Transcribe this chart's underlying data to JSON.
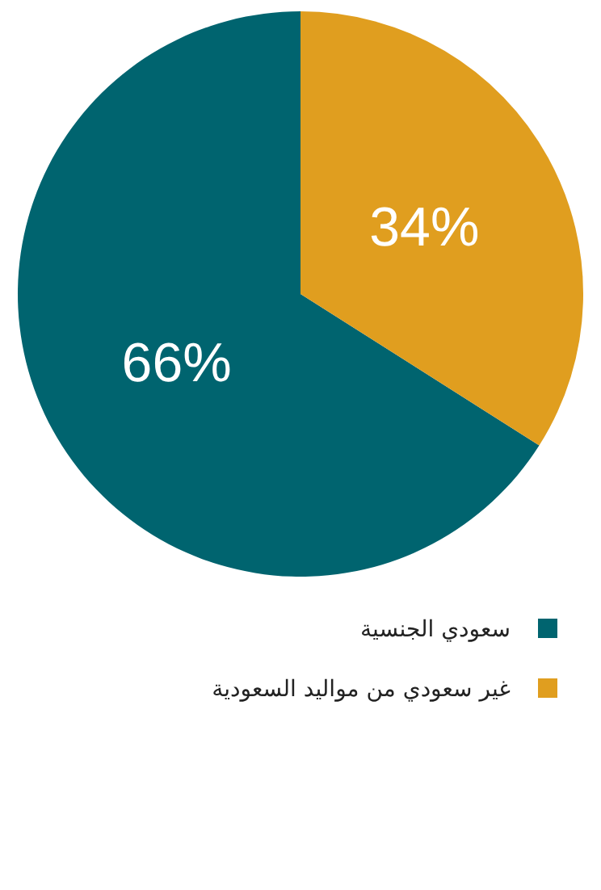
{
  "chart_data": {
    "type": "pie",
    "categories": [
      "سعودي الجنسية",
      "غير سعودي من مواليد السعودية"
    ],
    "values": [
      66,
      34
    ],
    "value_labels": [
      "66%",
      "34%"
    ],
    "colors": [
      "#00646f",
      "#e09e1f"
    ],
    "legend": "bottom"
  }
}
